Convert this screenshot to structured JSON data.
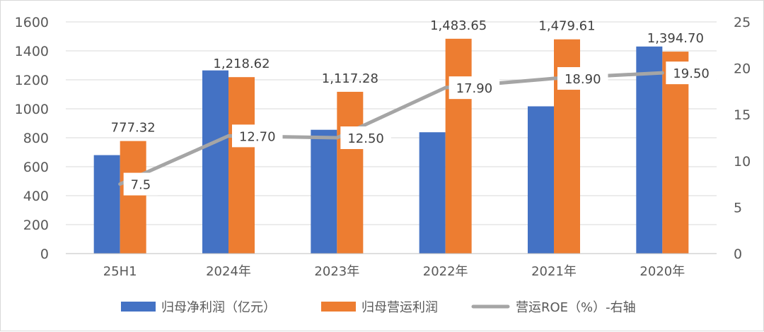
{
  "chart_data": {
    "type": "bar",
    "categories": [
      "25H1",
      "2024年",
      "2023年",
      "2022年",
      "2021年",
      "2020年"
    ],
    "series": [
      {
        "name": "归母净利润（亿元）",
        "values": [
          680,
          1265,
          855,
          838,
          1017,
          1430
        ],
        "color": "#4472C4",
        "axis": "left"
      },
      {
        "name": "归母营运利润",
        "values": [
          777.32,
          1218.62,
          1117.28,
          1483.65,
          1479.61,
          1394.7
        ],
        "labels": [
          "777.32",
          "1,218.62",
          "1,117.28",
          "1,483.65",
          "1,479.61",
          "1,394.70"
        ],
        "color": "#ED7D31",
        "axis": "left"
      },
      {
        "name": "营运ROE（%）-右轴",
        "type": "line",
        "values": [
          7.5,
          12.7,
          12.5,
          17.9,
          18.9,
          19.5
        ],
        "labels": [
          "7.5",
          "12.70",
          "12.50",
          "17.90",
          "18.90",
          "19.50"
        ],
        "color": "#A5A5A5",
        "axis": "right"
      }
    ],
    "left_axis": {
      "min": 0,
      "max": 1600,
      "ticks": [
        "0",
        "200",
        "400",
        "600",
        "800",
        "1000",
        "1200",
        "1400",
        "1600"
      ]
    },
    "right_axis": {
      "min": 0,
      "max": 25,
      "ticks": [
        "0",
        "5",
        "10",
        "15",
        "20",
        "25"
      ]
    },
    "grid": true,
    "legend": "bottom"
  }
}
